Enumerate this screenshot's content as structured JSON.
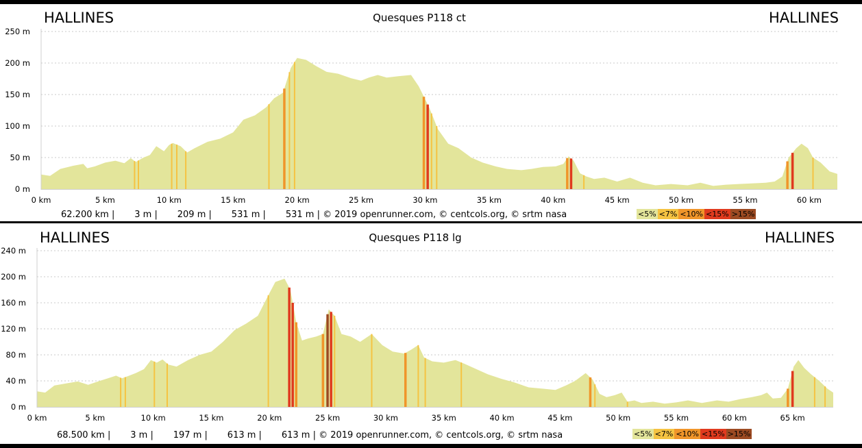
{
  "charts": [
    {
      "start_label": "HALLINES",
      "end_label": "HALLINES",
      "title": "Quesques P118 ct",
      "stats": "62.200 km |       3 m |       209 m |       531 m |       531 m | © 2019 openrunner.com, © centcols.org, © srtm nasa",
      "legend": [
        {
          "label": "<5%",
          "color": "#e3e59b"
        },
        {
          "label": "<7%",
          "color": "#f5c342"
        },
        {
          "label": "<10%",
          "color": "#f0952a"
        },
        {
          "label": "<15%",
          "color": "#e03a1e"
        },
        {
          "label": ">15%",
          "color": "#9c4a22"
        }
      ]
    },
    {
      "start_label": "HALLINES",
      "end_label": "HALLINES",
      "title": "Quesques P118 lg",
      "stats": "68.500 km |       3 m |       197 m |       613 m |       613 m | © 2019 openrunner.com, © centcols.org, © srtm nasa",
      "legend": [
        {
          "label": "<5%",
          "color": "#e3e59b"
        },
        {
          "label": "<7%",
          "color": "#f5c342"
        },
        {
          "label": "<10%",
          "color": "#f0952a"
        },
        {
          "label": "<15%",
          "color": "#e03a1e"
        },
        {
          "label": ">15%",
          "color": "#9c4a22"
        }
      ]
    }
  ],
  "chart_data": [
    {
      "type": "area",
      "title": "Quesques P118 ct",
      "xlabel": "",
      "ylabel": "",
      "x_unit": "km",
      "y_unit": "m",
      "xlim": [
        0,
        62.2
      ],
      "ylim": [
        0,
        250
      ],
      "xticks": [
        0,
        5,
        10,
        15,
        20,
        25,
        30,
        35,
        40,
        45,
        50,
        55,
        60
      ],
      "xtick_labels": [
        "0 km",
        "5 km",
        "10 km",
        "15 km",
        "20 km",
        "25 km",
        "30 km",
        "35 km",
        "40 km",
        "45 km",
        "50 km",
        "55 km",
        "60 km"
      ],
      "yticks": [
        0,
        50,
        100,
        150,
        200,
        250
      ],
      "ytick_labels": [
        "0 m",
        "50 m",
        "100 m",
        "150 m",
        "200 m",
        "250 m"
      ],
      "grid": true,
      "fill_color": "#e3e59b",
      "x": [
        0,
        0.7,
        1.5,
        2.5,
        3.3,
        3.6,
        4.2,
        5,
        5.8,
        6.5,
        7,
        7.4,
        8,
        8.5,
        9,
        9.6,
        10,
        10.3,
        10.9,
        11.4,
        12,
        13,
        14,
        15,
        15.8,
        16.7,
        17.6,
        18.2,
        18.9,
        19.5,
        20,
        20.7,
        21.5,
        22.3,
        23.2,
        24.2,
        25,
        25.6,
        26.3,
        27,
        27.9,
        28.9,
        29.5,
        30.3,
        31,
        31.8,
        32.6,
        33.6,
        34.5,
        35.5,
        36.4,
        37.5,
        38.3,
        39.2,
        40.2,
        40.8,
        41.2,
        41.6,
        42.1,
        42.6,
        43.2,
        44,
        45,
        46,
        47,
        48,
        49.2,
        50.5,
        51.5,
        52.5,
        53.5,
        54.5,
        55.5,
        56.6,
        57.3,
        57.9,
        58.4,
        59,
        59.4,
        59.9,
        60.3,
        60.9,
        61.6,
        62.2
      ],
      "y": [
        23,
        21,
        32,
        37,
        40,
        33,
        36,
        42,
        45,
        41,
        49,
        43,
        50,
        54,
        68,
        60,
        70,
        73,
        68,
        58,
        65,
        75,
        80,
        90,
        110,
        117,
        130,
        144,
        153,
        192,
        208,
        205,
        195,
        186,
        183,
        176,
        172,
        177,
        181,
        177,
        179,
        181,
        163,
        130,
        95,
        72,
        65,
        50,
        42,
        36,
        32,
        30,
        32,
        35,
        36,
        40,
        52,
        45,
        25,
        20,
        16,
        18,
        12,
        18,
        10,
        6,
        8,
        6,
        10,
        5,
        7,
        8,
        9,
        10,
        12,
        20,
        50,
        65,
        72,
        65,
        50,
        42,
        28,
        24
      ],
      "grade_bands": [
        {
          "x": 7.3,
          "class": "<7%"
        },
        {
          "x": 7.6,
          "class": "<7%"
        },
        {
          "x": 10.2,
          "class": "<7%"
        },
        {
          "x": 10.6,
          "class": "<7%"
        },
        {
          "x": 11.3,
          "class": "<7%"
        },
        {
          "x": 17.8,
          "class": "<7%"
        },
        {
          "x": 19.0,
          "class": "<10%"
        },
        {
          "x": 19.4,
          "class": "<7%"
        },
        {
          "x": 19.8,
          "class": "<7%"
        },
        {
          "x": 29.9,
          "class": "<10%"
        },
        {
          "x": 30.2,
          "class": "<15%"
        },
        {
          "x": 30.5,
          "class": "<7%"
        },
        {
          "x": 30.9,
          "class": "<7%"
        },
        {
          "x": 41.1,
          "class": "<10%"
        },
        {
          "x": 41.4,
          "class": "<15%"
        },
        {
          "x": 42.4,
          "class": "<7%"
        },
        {
          "x": 58.3,
          "class": "<10%"
        },
        {
          "x": 58.7,
          "class": "<15%"
        },
        {
          "x": 60.3,
          "class": "<7%"
        }
      ]
    },
    {
      "type": "area",
      "title": "Quesques P118 lg",
      "xlabel": "",
      "ylabel": "",
      "x_unit": "km",
      "y_unit": "m",
      "xlim": [
        0,
        68.5
      ],
      "ylim": [
        0,
        240
      ],
      "xticks": [
        0,
        5,
        10,
        15,
        20,
        25,
        30,
        35,
        40,
        45,
        50,
        55,
        60,
        65
      ],
      "xtick_labels": [
        "0 km",
        "5 km",
        "10 km",
        "15 km",
        "20 km",
        "25 km",
        "30 km",
        "35 km",
        "40 km",
        "45 km",
        "50 km",
        "55 km",
        "60 km",
        "65 km"
      ],
      "yticks": [
        0,
        40,
        80,
        120,
        160,
        200,
        240
      ],
      "ytick_labels": [
        "0 m",
        "40 m",
        "80 m",
        "120 m",
        "160 m",
        "200 m",
        "240 m"
      ],
      "grid": true,
      "fill_color": "#e3e59b",
      "x": [
        0,
        0.7,
        1.5,
        2.5,
        3.5,
        4.4,
        5.4,
        6.1,
        6.8,
        7.3,
        7.8,
        8.5,
        9.2,
        9.8,
        10.3,
        10.8,
        11.3,
        12,
        13,
        14,
        15,
        16,
        17,
        18,
        19,
        19.8,
        20.5,
        21.3,
        21.8,
        22.3,
        22.8,
        23.3,
        24,
        24.6,
        25.1,
        25.6,
        26.2,
        27,
        27.8,
        28.8,
        29.7,
        30.6,
        31.6,
        32.2,
        32.8,
        33.3,
        34,
        35,
        36,
        36.8,
        37.8,
        38.8,
        40,
        41,
        42.3,
        43.5,
        44.6,
        45.5,
        46.3,
        47.2,
        47.8,
        48.4,
        49,
        49.7,
        50.3,
        50.8,
        51.4,
        52,
        53,
        54,
        55,
        56,
        57.2,
        58.5,
        59.5,
        60.5,
        61.5,
        62.3,
        62.8,
        63.3,
        64,
        64.6,
        65.1,
        65.5,
        66,
        66.6,
        67.3,
        68,
        68.5
      ],
      "y": [
        24,
        22,
        33,
        36,
        39,
        34,
        40,
        44,
        48,
        44,
        47,
        52,
        58,
        72,
        68,
        73,
        65,
        62,
        72,
        80,
        85,
        100,
        118,
        128,
        140,
        168,
        192,
        197,
        180,
        130,
        102,
        105,
        108,
        112,
        150,
        140,
        112,
        108,
        100,
        112,
        95,
        85,
        82,
        88,
        95,
        76,
        70,
        68,
        72,
        66,
        58,
        50,
        43,
        38,
        30,
        28,
        26,
        33,
        40,
        52,
        42,
        20,
        15,
        18,
        22,
        8,
        10,
        6,
        8,
        5,
        7,
        10,
        6,
        10,
        8,
        12,
        15,
        18,
        22,
        13,
        14,
        28,
        62,
        72,
        60,
        50,
        40,
        28,
        22
      ],
      "grade_bands": [
        {
          "x": 7.2,
          "class": "<7%"
        },
        {
          "x": 7.6,
          "class": "<7%"
        },
        {
          "x": 10.1,
          "class": "<7%"
        },
        {
          "x": 11.2,
          "class": "<7%"
        },
        {
          "x": 19.9,
          "class": "<7%"
        },
        {
          "x": 21.7,
          "class": "<15%"
        },
        {
          "x": 22.0,
          "class": "<15%"
        },
        {
          "x": 22.3,
          "class": "<10%"
        },
        {
          "x": 24.6,
          "class": "<10%"
        },
        {
          "x": 25.0,
          "class": ">15%"
        },
        {
          "x": 25.3,
          "class": "<15%"
        },
        {
          "x": 25.6,
          "class": "<7%"
        },
        {
          "x": 28.8,
          "class": "<7%"
        },
        {
          "x": 31.7,
          "class": "<10%"
        },
        {
          "x": 32.8,
          "class": "<7%"
        },
        {
          "x": 33.4,
          "class": "<7%"
        },
        {
          "x": 36.5,
          "class": "<7%"
        },
        {
          "x": 47.6,
          "class": "<10%"
        },
        {
          "x": 48.0,
          "class": "<7%"
        },
        {
          "x": 50.8,
          "class": "<7%"
        },
        {
          "x": 64.6,
          "class": "<10%"
        },
        {
          "x": 65.0,
          "class": "<15%"
        },
        {
          "x": 66.9,
          "class": "<7%"
        },
        {
          "x": 67.8,
          "class": "<7%"
        }
      ]
    }
  ]
}
